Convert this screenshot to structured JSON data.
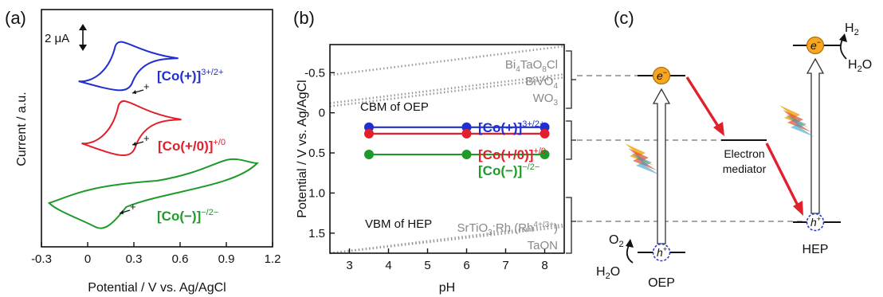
{
  "chart_data": [
    {
      "type": "line",
      "panel_label": "(a)",
      "xlabel": "Potential / V vs. Ag/AgCl",
      "ylabel": "Current / a.u.",
      "xlim": [
        -0.3,
        1.2
      ],
      "xticks": [
        "-0.3",
        "0",
        "0.3",
        "0.6",
        "0.9",
        "1.2"
      ],
      "scale_bar_label": "2 μA",
      "series": [
        {
          "name": "[Co(+)]3+/2+",
          "name_main": "[Co(+)]",
          "name_sup": "3+/2+",
          "color": "#1f2fd0",
          "E0": 0.2,
          "offset": 0.0
        },
        {
          "name": "[Co(+/0)]+/0",
          "name_main": "[Co(+/0)]",
          "name_sup": "+/0",
          "color": "#e0202a",
          "E0": 0.22,
          "offset": 1.0
        },
        {
          "name": "[Co(−)]−/2−",
          "name_main": "[Co(−)]",
          "name_sup": "−/2−",
          "color": "#1f9a2a",
          "E0": 0.05,
          "offset": 2.0
        }
      ],
      "scan_direction_symbol": "+"
    },
    {
      "type": "line",
      "panel_label": "(b)",
      "xlabel": "pH",
      "ylabel": "Potential / V vs. Ag/AgCl",
      "xlim": [
        2.5,
        8.5
      ],
      "ylim": [
        -0.85,
        1.75
      ],
      "xticks": [
        "3",
        "4",
        "5",
        "6",
        "7",
        "8"
      ],
      "yticks": [
        "-0.5",
        "0",
        "0.5",
        "1.0",
        "1.5"
      ],
      "series": [
        {
          "name": "[Co(+)]3+/2+",
          "name_main": "[Co(+)]",
          "name_sup": "3+/2+",
          "color": "#1f2fd0",
          "x": [
            3.5,
            6,
            8
          ],
          "y": [
            0.18,
            0.18,
            0.18
          ]
        },
        {
          "name": "[Co(+/0)]+/0",
          "name_main": "[Co(+/0)]",
          "name_sup": "+/0",
          "color": "#e0202a",
          "x": [
            3.5,
            6,
            8
          ],
          "y": [
            0.26,
            0.26,
            0.26
          ]
        },
        {
          "name": "[Co(−)]−/2−",
          "name_main": "[Co(−)]",
          "name_sup": "−/2−",
          "color": "#1f9a2a",
          "x": [
            3.5,
            6,
            8
          ],
          "y": [
            0.52,
            0.52,
            0.52
          ]
        }
      ],
      "reference_lines": [
        {
          "label": "Bi4TaO8Cl",
          "y_at_xmin": -0.47,
          "y_at_xmax": -0.83
        },
        {
          "label": "BiVO4",
          "y_at_xmin": -0.12,
          "y_at_xmax": -0.48
        },
        {
          "label": "WO3",
          "y_at_xmin": -0.08,
          "y_at_xmax": -0.44
        },
        {
          "label": "SrTiO3:Rh (Rh4+/3+)",
          "y_at_xmin": 1.75,
          "y_at_xmax": 1.39
        },
        {
          "label": "TaON",
          "y_at_xmin": 1.78,
          "y_at_xmax": 1.42
        }
      ],
      "material_labels": {
        "bi4taocl": {
          "main": "Bi",
          "s1": "4",
          "m2": "TaO",
          "s2": "8",
          "m3": "Cl"
        },
        "bivo4": {
          "main": "BiVO",
          "s1": "4"
        },
        "wo3": {
          "main": "WO",
          "s1": "3"
        },
        "srtio3": {
          "main": "SrTiO",
          "s1": "3",
          "m2": ":Rh (Rh",
          "sup": "4+/3+",
          "m3": ")"
        },
        "taon": "TaON"
      },
      "annotations": [
        "CBM of OEP",
        "VBM of HEP"
      ]
    }
  ],
  "diagram_c": {
    "panel_label": "(c)",
    "labels": {
      "oep": "OEP",
      "hep": "HEP",
      "mediator_line1": "Electron",
      "mediator_line2": "mediator",
      "electron": "e",
      "hole": "h",
      "o2_main": "O",
      "o2_sub": "2",
      "h2o_main": "H",
      "h2o_sub": "2",
      "h2o_end": "O",
      "h2_main": "H",
      "h2_sub": "2"
    },
    "colors": {
      "electron_fill": "#f5a623",
      "hole_stroke": "#2a3bd0",
      "arrow_red": "#e0202a",
      "dash": "#8a8a8a"
    }
  }
}
